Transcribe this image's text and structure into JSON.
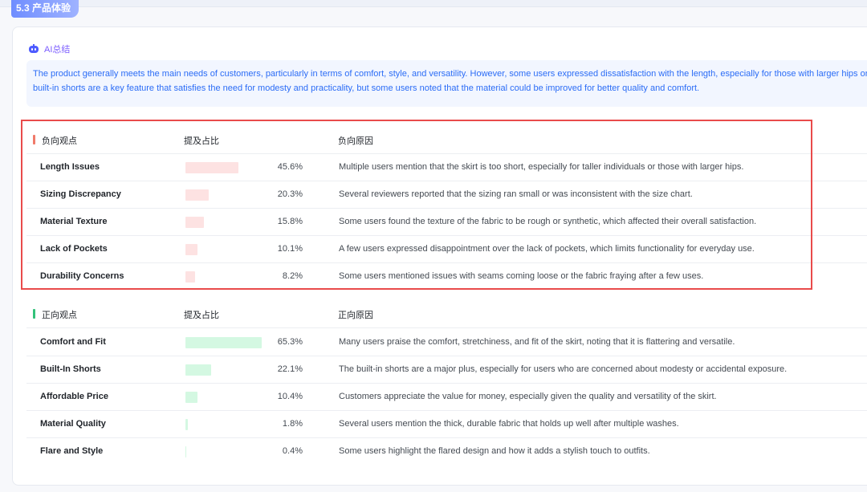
{
  "section": {
    "title": "5.3 产品体验"
  },
  "ai_summary": {
    "label": "AI总结",
    "line1": "The product generally meets the main needs of customers, particularly in terms of comfort, style, and versatility. However, some users expressed dissatisfaction with the length, especially for those with larger hips or taller individuals. The",
    "line2": "built-in shorts are a key feature that satisfies the need for modesty and practicality, but some users noted that the material could be improved for better quality and comfort."
  },
  "colors": {
    "negative_marker": "#f07a6a",
    "positive_marker": "#33c27a",
    "highlight": "#e94b4b",
    "accent": "#2b6cf6"
  },
  "negative": {
    "headers": {
      "label": "负向观点",
      "ratio": "提及占比",
      "reason": "负向原因"
    },
    "rows": [
      {
        "label": "Length Issues",
        "pct": "45.6%",
        "value": 45.6,
        "reason": "Multiple users mention that the skirt is too short, especially for taller individuals or those with larger hips."
      },
      {
        "label": "Sizing Discrepancy",
        "pct": "20.3%",
        "value": 20.3,
        "reason": "Several reviewers reported that the sizing ran small or was inconsistent with the size chart."
      },
      {
        "label": "Material Texture",
        "pct": "15.8%",
        "value": 15.8,
        "reason": "Some users found the texture of the fabric to be rough or synthetic, which affected their overall satisfaction."
      },
      {
        "label": "Lack of Pockets",
        "pct": "10.1%",
        "value": 10.1,
        "reason": "A few users expressed disappointment over the lack of pockets, which limits functionality for everyday use."
      },
      {
        "label": "Durability Concerns",
        "pct": "8.2%",
        "value": 8.2,
        "reason": "Some users mentioned issues with seams coming loose or the fabric fraying after a few uses."
      }
    ]
  },
  "positive": {
    "headers": {
      "label": "正向观点",
      "ratio": "提及占比",
      "reason": "正向原因"
    },
    "rows": [
      {
        "label": "Comfort and Fit",
        "pct": "65.3%",
        "value": 65.3,
        "reason": "Many users praise the comfort, stretchiness, and fit of the skirt, noting that it is flattering and versatile."
      },
      {
        "label": "Built-In Shorts",
        "pct": "22.1%",
        "value": 22.1,
        "reason": "The built-in shorts are a major plus, especially for users who are concerned about modesty or accidental exposure."
      },
      {
        "label": "Affordable Price",
        "pct": "10.4%",
        "value": 10.4,
        "reason": "Customers appreciate the value for money, especially given the quality and versatility of the skirt."
      },
      {
        "label": "Material Quality",
        "pct": "1.8%",
        "value": 1.8,
        "reason": "Several users mention the thick, durable fabric that holds up well after multiple washes."
      },
      {
        "label": "Flare and Style",
        "pct": "0.4%",
        "value": 0.4,
        "reason": "Some users highlight the flared design and how it adds a stylish touch to outfits."
      }
    ]
  }
}
